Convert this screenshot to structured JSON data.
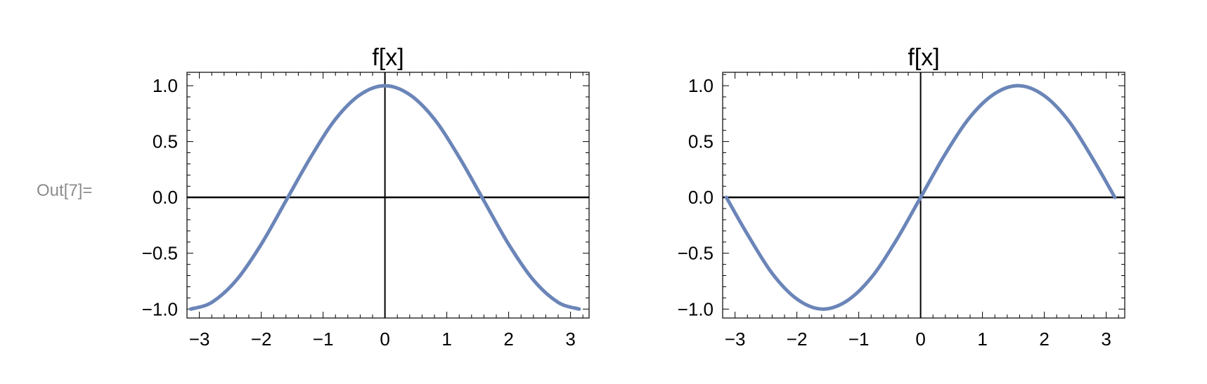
{
  "output_label": "Out[7]=",
  "colors": {
    "curve": "#6b85b8",
    "axis": "#000000",
    "frame": "#000000"
  },
  "chart_data": [
    {
      "type": "line",
      "title": "f[x]",
      "xlim": [
        -3.2,
        3.3
      ],
      "ylim": [
        -1.08,
        1.12
      ],
      "xticks": [
        -3,
        -2,
        -1,
        0,
        1,
        2,
        3
      ],
      "xtick_labels": [
        "−3",
        "−2",
        "−1",
        "0",
        "1",
        "2",
        "3"
      ],
      "yticks": [
        -1.0,
        -0.5,
        0.0,
        0.5,
        1.0
      ],
      "ytick_labels": [
        "−1.0",
        "−0.5",
        "0.0",
        "0.5",
        "1.0"
      ],
      "grid": false,
      "series": [
        {
          "x": [
            -3.14,
            -2.8,
            -2.4,
            -2.0,
            -1.6,
            -1.2,
            -0.8,
            -0.4,
            0.0,
            0.4,
            0.8,
            1.2,
            1.6,
            2.0,
            2.4,
            2.8,
            3.14
          ],
          "y": [
            -1.0,
            -0.94,
            -0.74,
            -0.42,
            -0.03,
            0.36,
            0.7,
            0.92,
            1.0,
            0.92,
            0.7,
            0.36,
            -0.03,
            -0.42,
            -0.74,
            -0.94,
            -1.0
          ]
        }
      ]
    },
    {
      "type": "line",
      "title": "f[x]",
      "xlim": [
        -3.2,
        3.3
      ],
      "ylim": [
        -1.08,
        1.12
      ],
      "xticks": [
        -3,
        -2,
        -1,
        0,
        1,
        2,
        3
      ],
      "xtick_labels": [
        "−3",
        "−2",
        "−1",
        "0",
        "1",
        "2",
        "3"
      ],
      "yticks": [
        -1.0,
        -0.5,
        0.0,
        0.5,
        1.0
      ],
      "ytick_labels": [
        "−1.0",
        "−0.5",
        "0.0",
        "0.5",
        "1.0"
      ],
      "grid": false,
      "series": [
        {
          "x": [
            -3.14,
            -2.8,
            -2.4,
            -2.0,
            -1.6,
            -1.2,
            -0.8,
            -0.4,
            0.0,
            0.4,
            0.8,
            1.2,
            1.6,
            2.0,
            2.4,
            2.8,
            3.14
          ],
          "y": [
            0.0,
            -0.33,
            -0.68,
            -0.91,
            -1.0,
            -0.93,
            -0.72,
            -0.39,
            0.0,
            0.39,
            0.72,
            0.93,
            1.0,
            0.91,
            0.68,
            0.33,
            0.0
          ]
        }
      ]
    }
  ]
}
